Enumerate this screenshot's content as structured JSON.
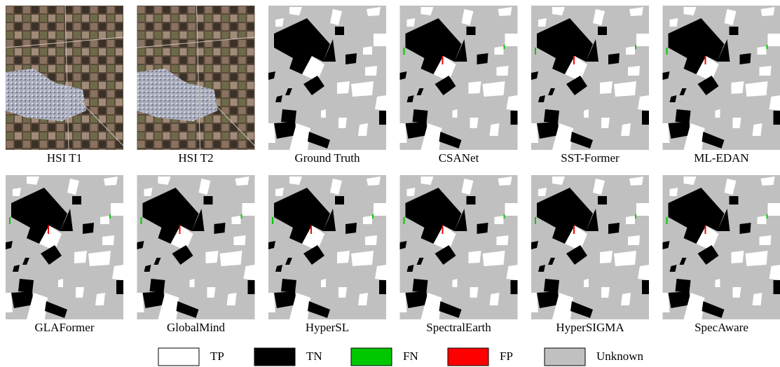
{
  "panels": [
    {
      "label": "HSI T1"
    },
    {
      "label": "HSI T2"
    },
    {
      "label": "Ground Truth"
    },
    {
      "label": "CSANet"
    },
    {
      "label": "SST-Former"
    },
    {
      "label": "ML-EDAN"
    },
    {
      "label": "GLAFormer"
    },
    {
      "label": "GlobalMind"
    },
    {
      "label": "HyperSL"
    },
    {
      "label": "SpectralEarth"
    },
    {
      "label": "HyperSIGMA"
    },
    {
      "label": "SpecAware"
    }
  ],
  "legend": [
    {
      "label": "TP",
      "color": "#ffffff"
    },
    {
      "label": "TN",
      "color": "#000000"
    },
    {
      "label": "FN",
      "color": "#00c800"
    },
    {
      "label": "FP",
      "color": "#ff0000"
    },
    {
      "label": "Unknown",
      "color": "#c0c0c0"
    }
  ]
}
